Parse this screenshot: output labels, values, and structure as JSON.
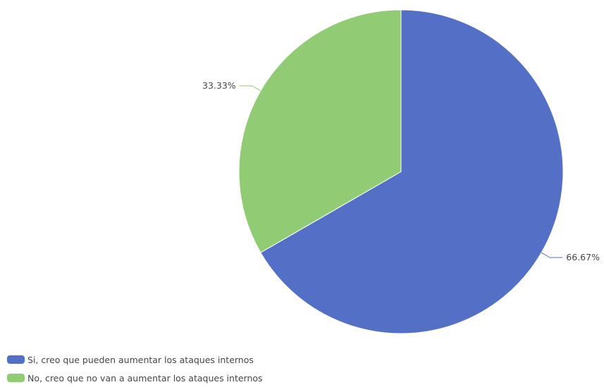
{
  "chart_data": {
    "type": "pie",
    "title": "",
    "slices": [
      {
        "label": "Si, creo que pueden aumentar los ataques internos",
        "value": 66.67,
        "display": "66.67%",
        "color": "#5470c6"
      },
      {
        "label": "No, creo que no van a aumentar los ataques internos",
        "value": 33.33,
        "display": "33.33%",
        "color": "#91cc75"
      }
    ],
    "legend_position": "bottom-left"
  }
}
